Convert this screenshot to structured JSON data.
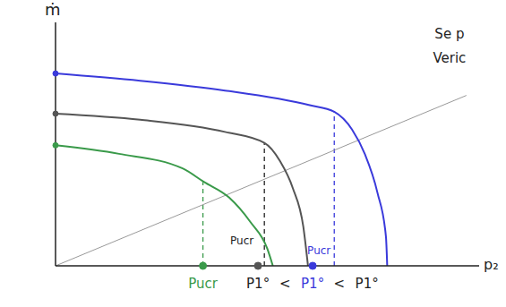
{
  "chart_data": {
    "type": "line",
    "x_label": "p₂",
    "y_label": "ṁ",
    "xlim": [
      0,
      10
    ],
    "ylim": [
      0,
      10
    ],
    "tick_labels": false,
    "grid": false,
    "series": [
      {
        "color": "#999999",
        "line_style": "solid",
        "x": [
          0,
          9.7
        ],
        "values": [
          0,
          7.0
        ]
      },
      {
        "color": "#3a9a4a",
        "line_style": "solid",
        "x": [
          0,
          1.5,
          3,
          3.5,
          4.1,
          4.6,
          5.0,
          5.13
        ],
        "values": [
          4.95,
          4.6,
          4.0,
          3.45,
          2.8,
          1.8,
          0.7,
          0
        ]
      },
      {
        "color": "#555555",
        "line_style": "solid",
        "x": [
          0,
          2,
          4,
          4.93,
          5.3,
          5.6,
          5.85,
          5.96
        ],
        "values": [
          6.25,
          6.0,
          5.5,
          5.05,
          4.3,
          3.2,
          1.6,
          0
        ]
      },
      {
        "color": "#3a3adb",
        "line_style": "solid",
        "x": [
          0,
          2,
          4,
          6,
          6.58,
          7.0,
          7.3,
          7.6,
          7.8,
          7.83
        ],
        "values": [
          7.9,
          7.6,
          7.2,
          6.6,
          6.33,
          5.6,
          4.6,
          3.0,
          1.2,
          0
        ]
      }
    ],
    "dashed_lines": [
      {
        "x": 3.48,
        "y_top": 3.45,
        "color": "#3a9a4a"
      },
      {
        "x": 4.93,
        "y_top": 5.05,
        "color": "#222222"
      },
      {
        "x": 6.58,
        "y_top": 6.33,
        "color": "#3a3adb"
      }
    ],
    "points": [
      {
        "x": 3.48,
        "y": 0,
        "color": "#3a9a4a"
      },
      {
        "x": 4.78,
        "y": 0,
        "color": "#555555"
      },
      {
        "x": 6.07,
        "y": 0,
        "color": "#3a3adb"
      }
    ],
    "annotations": [
      {
        "text": "Pucr",
        "x": 4.4,
        "y": 1.0,
        "color": "#222222"
      },
      {
        "text": "Pucr",
        "x": 6.22,
        "y": 0.6,
        "color": "#3a3adb"
      },
      {
        "text": "Pucr",
        "x": 3.48,
        "y": -0.75,
        "color": "#3a9a4a"
      },
      {
        "text": "P1°",
        "x": 4.78,
        "y": -0.75,
        "color": "#222222"
      },
      {
        "text": "<",
        "x": 5.42,
        "y": -0.75,
        "color": "#222222"
      },
      {
        "text": "P1°",
        "x": 6.07,
        "y": -0.75,
        "color": "#3a3adb"
      },
      {
        "text": "<",
        "x": 6.7,
        "y": -0.75,
        "color": "#222222"
      },
      {
        "text": "P1°",
        "x": 7.35,
        "y": -0.75,
        "color": "#222222"
      },
      {
        "text": "Se p",
        "x": 9.3,
        "y": 9.5,
        "color": "#222222"
      },
      {
        "text": "Veric",
        "x": 9.3,
        "y": 8.5,
        "color": "#222222"
      }
    ]
  }
}
